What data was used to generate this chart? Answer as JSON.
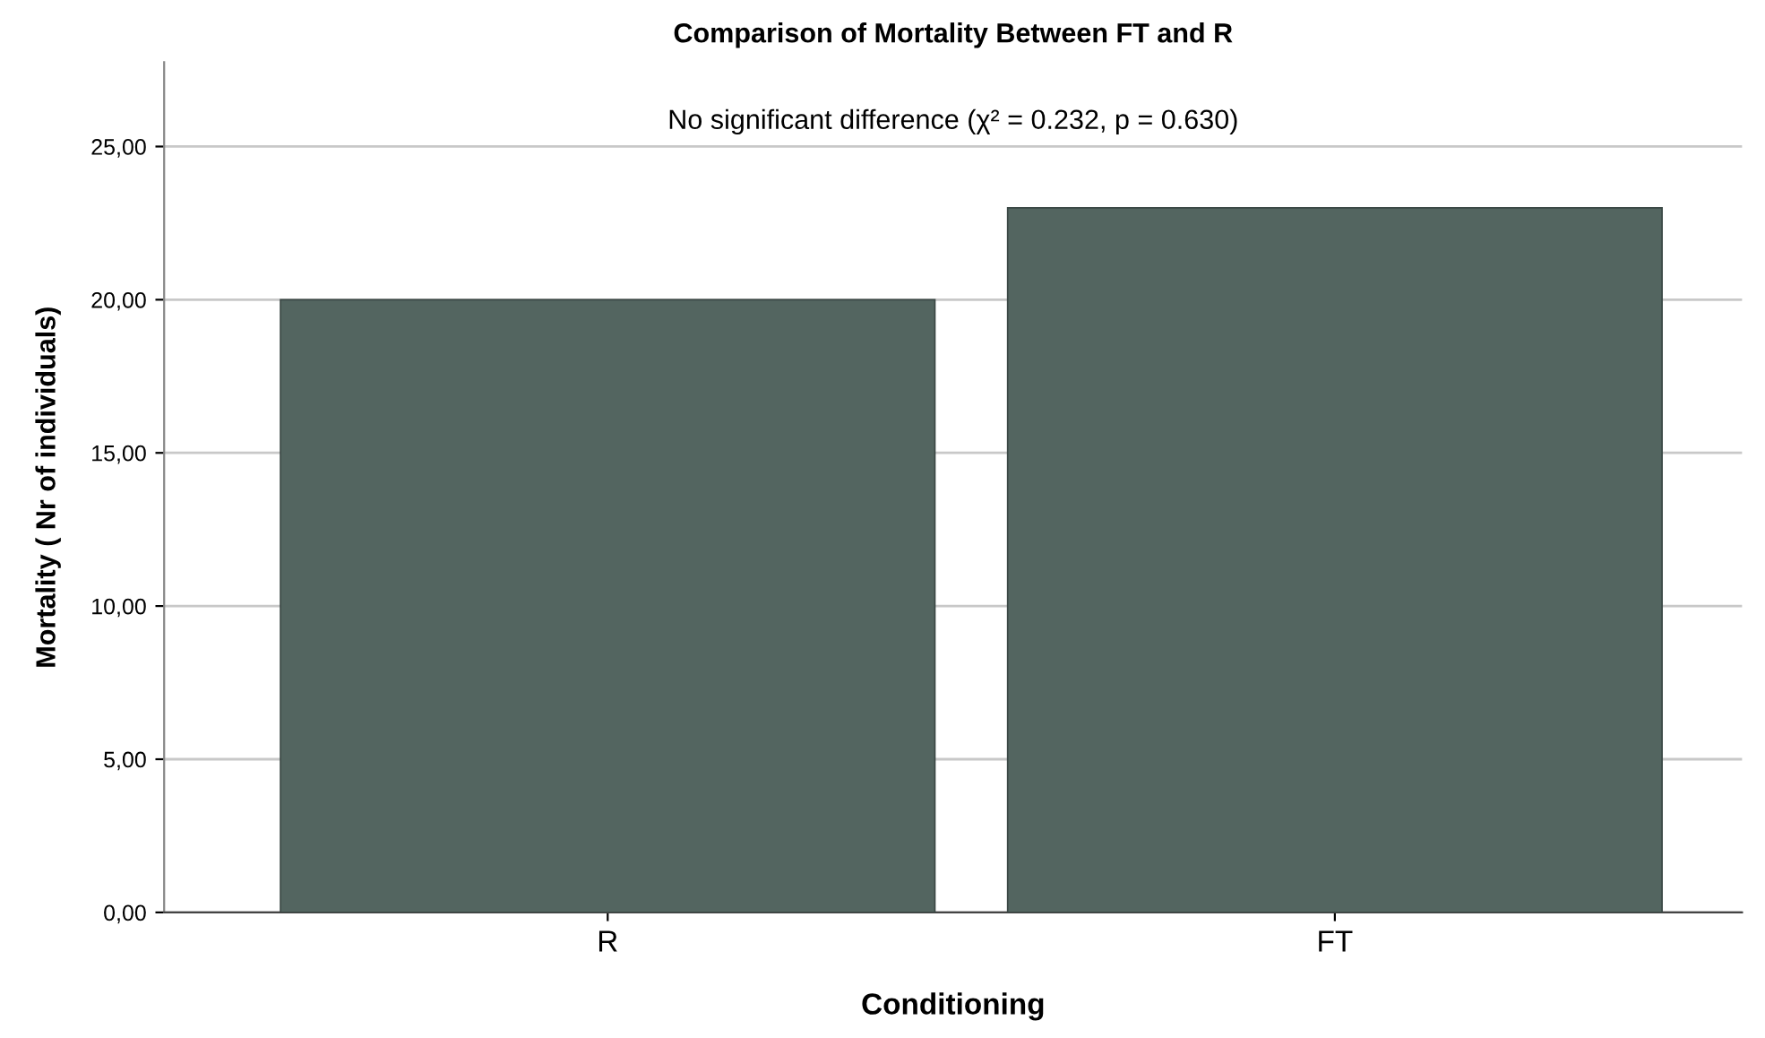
{
  "chart_data": {
    "type": "bar",
    "title": "Comparison of Mortality Between FT and R",
    "xlabel": "Conditioning",
    "ylabel": "Mortality ( Nr of individuals)",
    "categories": [
      "R",
      "FT"
    ],
    "values": [
      20,
      23
    ],
    "color": "#536560",
    "ylim": [
      0,
      27.75
    ],
    "yticks": [
      {
        "value": 0,
        "label": "0,00"
      },
      {
        "value": 5,
        "label": "5,00"
      },
      {
        "value": 10,
        "label": "10,00"
      },
      {
        "value": 15,
        "label": "15,00"
      },
      {
        "value": 20,
        "label": "20,00"
      },
      {
        "value": 25,
        "label": "25,00"
      }
    ],
    "grid": "y",
    "annotations": [
      "No significant difference (χ² = 0.232, p = 0.630)"
    ]
  }
}
